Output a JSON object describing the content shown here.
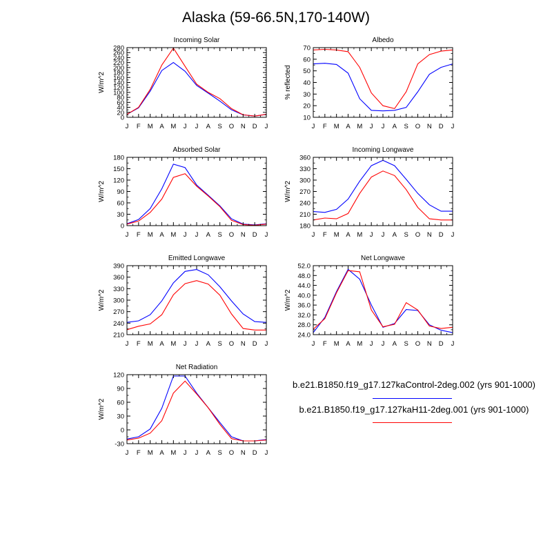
{
  "page": {
    "title": "Alaska (59-66.5N,170-140W)"
  },
  "legend": [
    {
      "label": "b.e21.B1850.f19_g17.127kaControl-2deg.002 (yrs 901-1000)",
      "color": "#0000ff"
    },
    {
      "label": "b.e21.B1850.f19_g17.127kaH11-2deg.001 (yrs 901-1000)",
      "color": "#ff0000"
    }
  ],
  "chart_data": [
    {
      "type": "line",
      "title": "Incoming Solar",
      "ylabel": "W/m^2",
      "categories": [
        "J",
        "F",
        "M",
        "A",
        "M",
        "J",
        "J",
        "A",
        "S",
        "O",
        "N",
        "D",
        "J"
      ],
      "ylim": [
        0,
        280
      ],
      "yticks": [
        "0",
        "20",
        "40",
        "60",
        "80",
        "100",
        "120",
        "140",
        "160",
        "180",
        "200",
        "220",
        "240",
        "260",
        "280"
      ],
      "series": [
        {
          "color": "#0000ff",
          "values": [
            12,
            38,
            105,
            188,
            220,
            185,
            128,
            97,
            65,
            30,
            10,
            5,
            12
          ]
        },
        {
          "color": "#ff0000",
          "values": [
            12,
            40,
            112,
            210,
            278,
            205,
            133,
            100,
            75,
            35,
            10,
            5,
            12
          ]
        }
      ]
    },
    {
      "type": "line",
      "title": "Albedo",
      "ylabel": "% reflected",
      "categories": [
        "J",
        "F",
        "M",
        "A",
        "M",
        "J",
        "J",
        "A",
        "S",
        "O",
        "N",
        "D",
        "J"
      ],
      "ylim": [
        10,
        70
      ],
      "yticks": [
        "10",
        "20",
        "30",
        "40",
        "50",
        "60",
        "70"
      ],
      "series": [
        {
          "color": "#0000ff",
          "values": [
            56,
            56.5,
            55.5,
            48,
            26,
            16,
            15.5,
            16,
            18.5,
            32,
            47,
            53,
            56
          ]
        },
        {
          "color": "#ff0000",
          "values": [
            68,
            68.5,
            68,
            66.5,
            53,
            31,
            20,
            17.5,
            32,
            56,
            64,
            67,
            68
          ]
        }
      ]
    },
    {
      "type": "line",
      "title": "Absorbed Solar",
      "ylabel": "W/m^2",
      "categories": [
        "J",
        "F",
        "M",
        "A",
        "M",
        "J",
        "J",
        "A",
        "S",
        "O",
        "N",
        "D",
        "J"
      ],
      "ylim": [
        0,
        180
      ],
      "yticks": [
        "0",
        "30",
        "60",
        "90",
        "120",
        "150",
        "180"
      ],
      "series": [
        {
          "color": "#0000ff",
          "values": [
            5,
            16,
            45,
            97,
            162,
            153,
            107,
            80,
            52,
            18,
            4,
            2,
            5
          ]
        },
        {
          "color": "#ff0000",
          "values": [
            4,
            12,
            35,
            70,
            127,
            137,
            104,
            78,
            50,
            14,
            3,
            1,
            4
          ]
        }
      ]
    },
    {
      "type": "line",
      "title": "Incoming Longwave",
      "ylabel": "W/m^2",
      "categories": [
        "J",
        "F",
        "M",
        "A",
        "M",
        "J",
        "J",
        "A",
        "S",
        "O",
        "N",
        "D",
        "J"
      ],
      "ylim": [
        180,
        360
      ],
      "yticks": [
        "180",
        "210",
        "240",
        "270",
        "300",
        "330",
        "360"
      ],
      "series": [
        {
          "color": "#0000ff",
          "values": [
            217,
            215,
            223,
            250,
            297,
            338,
            352,
            338,
            302,
            265,
            235,
            218,
            218
          ]
        },
        {
          "color": "#ff0000",
          "values": [
            195,
            200,
            198,
            212,
            265,
            308,
            324,
            312,
            275,
            228,
            198,
            195,
            195
          ]
        }
      ]
    },
    {
      "type": "line",
      "title": "Emitted Longwave",
      "ylabel": "W/m^2",
      "categories": [
        "J",
        "F",
        "M",
        "A",
        "M",
        "J",
        "J",
        "A",
        "S",
        "O",
        "N",
        "D",
        "J"
      ],
      "ylim": [
        210,
        390
      ],
      "yticks": [
        "210",
        "240",
        "270",
        "300",
        "330",
        "360",
        "390"
      ],
      "series": [
        {
          "color": "#0000ff",
          "values": [
            242,
            246,
            262,
            298,
            345,
            375,
            380,
            366,
            335,
            298,
            264,
            244,
            242
          ]
        },
        {
          "color": "#ff0000",
          "values": [
            223,
            232,
            238,
            262,
            314,
            343,
            351,
            342,
            313,
            264,
            226,
            222,
            222
          ]
        }
      ]
    },
    {
      "type": "line",
      "title": "Net Longwave",
      "ylabel": "W/m^2",
      "categories": [
        "J",
        "F",
        "M",
        "A",
        "M",
        "J",
        "J",
        "A",
        "S",
        "O",
        "N",
        "D",
        "J"
      ],
      "ylim": [
        24,
        52
      ],
      "yticks": [
        "24.0",
        "28.0",
        "32.0",
        "36.0",
        "40.0",
        "44.0",
        "48.0",
        "52.0"
      ],
      "series": [
        {
          "color": "#0000ff",
          "values": [
            24.8,
            31,
            41.5,
            50.5,
            46.5,
            36,
            27,
            28.5,
            34.2,
            33.8,
            28,
            25.8,
            24.8
          ]
        },
        {
          "color": "#ff0000",
          "values": [
            26.2,
            30.5,
            41,
            50,
            49.5,
            34,
            27.2,
            28.2,
            37,
            34,
            27.5,
            26.5,
            27
          ]
        }
      ]
    },
    {
      "type": "line",
      "title": "Net Radiation",
      "ylabel": "W/m^2",
      "categories": [
        "J",
        "F",
        "M",
        "A",
        "M",
        "J",
        "J",
        "A",
        "S",
        "O",
        "N",
        "D",
        "J"
      ],
      "ylim": [
        -30,
        120
      ],
      "yticks": [
        "-30",
        "0",
        "30",
        "60",
        "90",
        "120"
      ],
      "series": [
        {
          "color": "#0000ff",
          "values": [
            -20,
            -15,
            2,
            47,
            117,
            117,
            80,
            48,
            16,
            -15,
            -24,
            -24,
            -21
          ]
        },
        {
          "color": "#ff0000",
          "values": [
            -22,
            -18,
            -7,
            20,
            80,
            106,
            78,
            48,
            12,
            -19,
            -24,
            -24,
            -22
          ]
        }
      ]
    }
  ]
}
